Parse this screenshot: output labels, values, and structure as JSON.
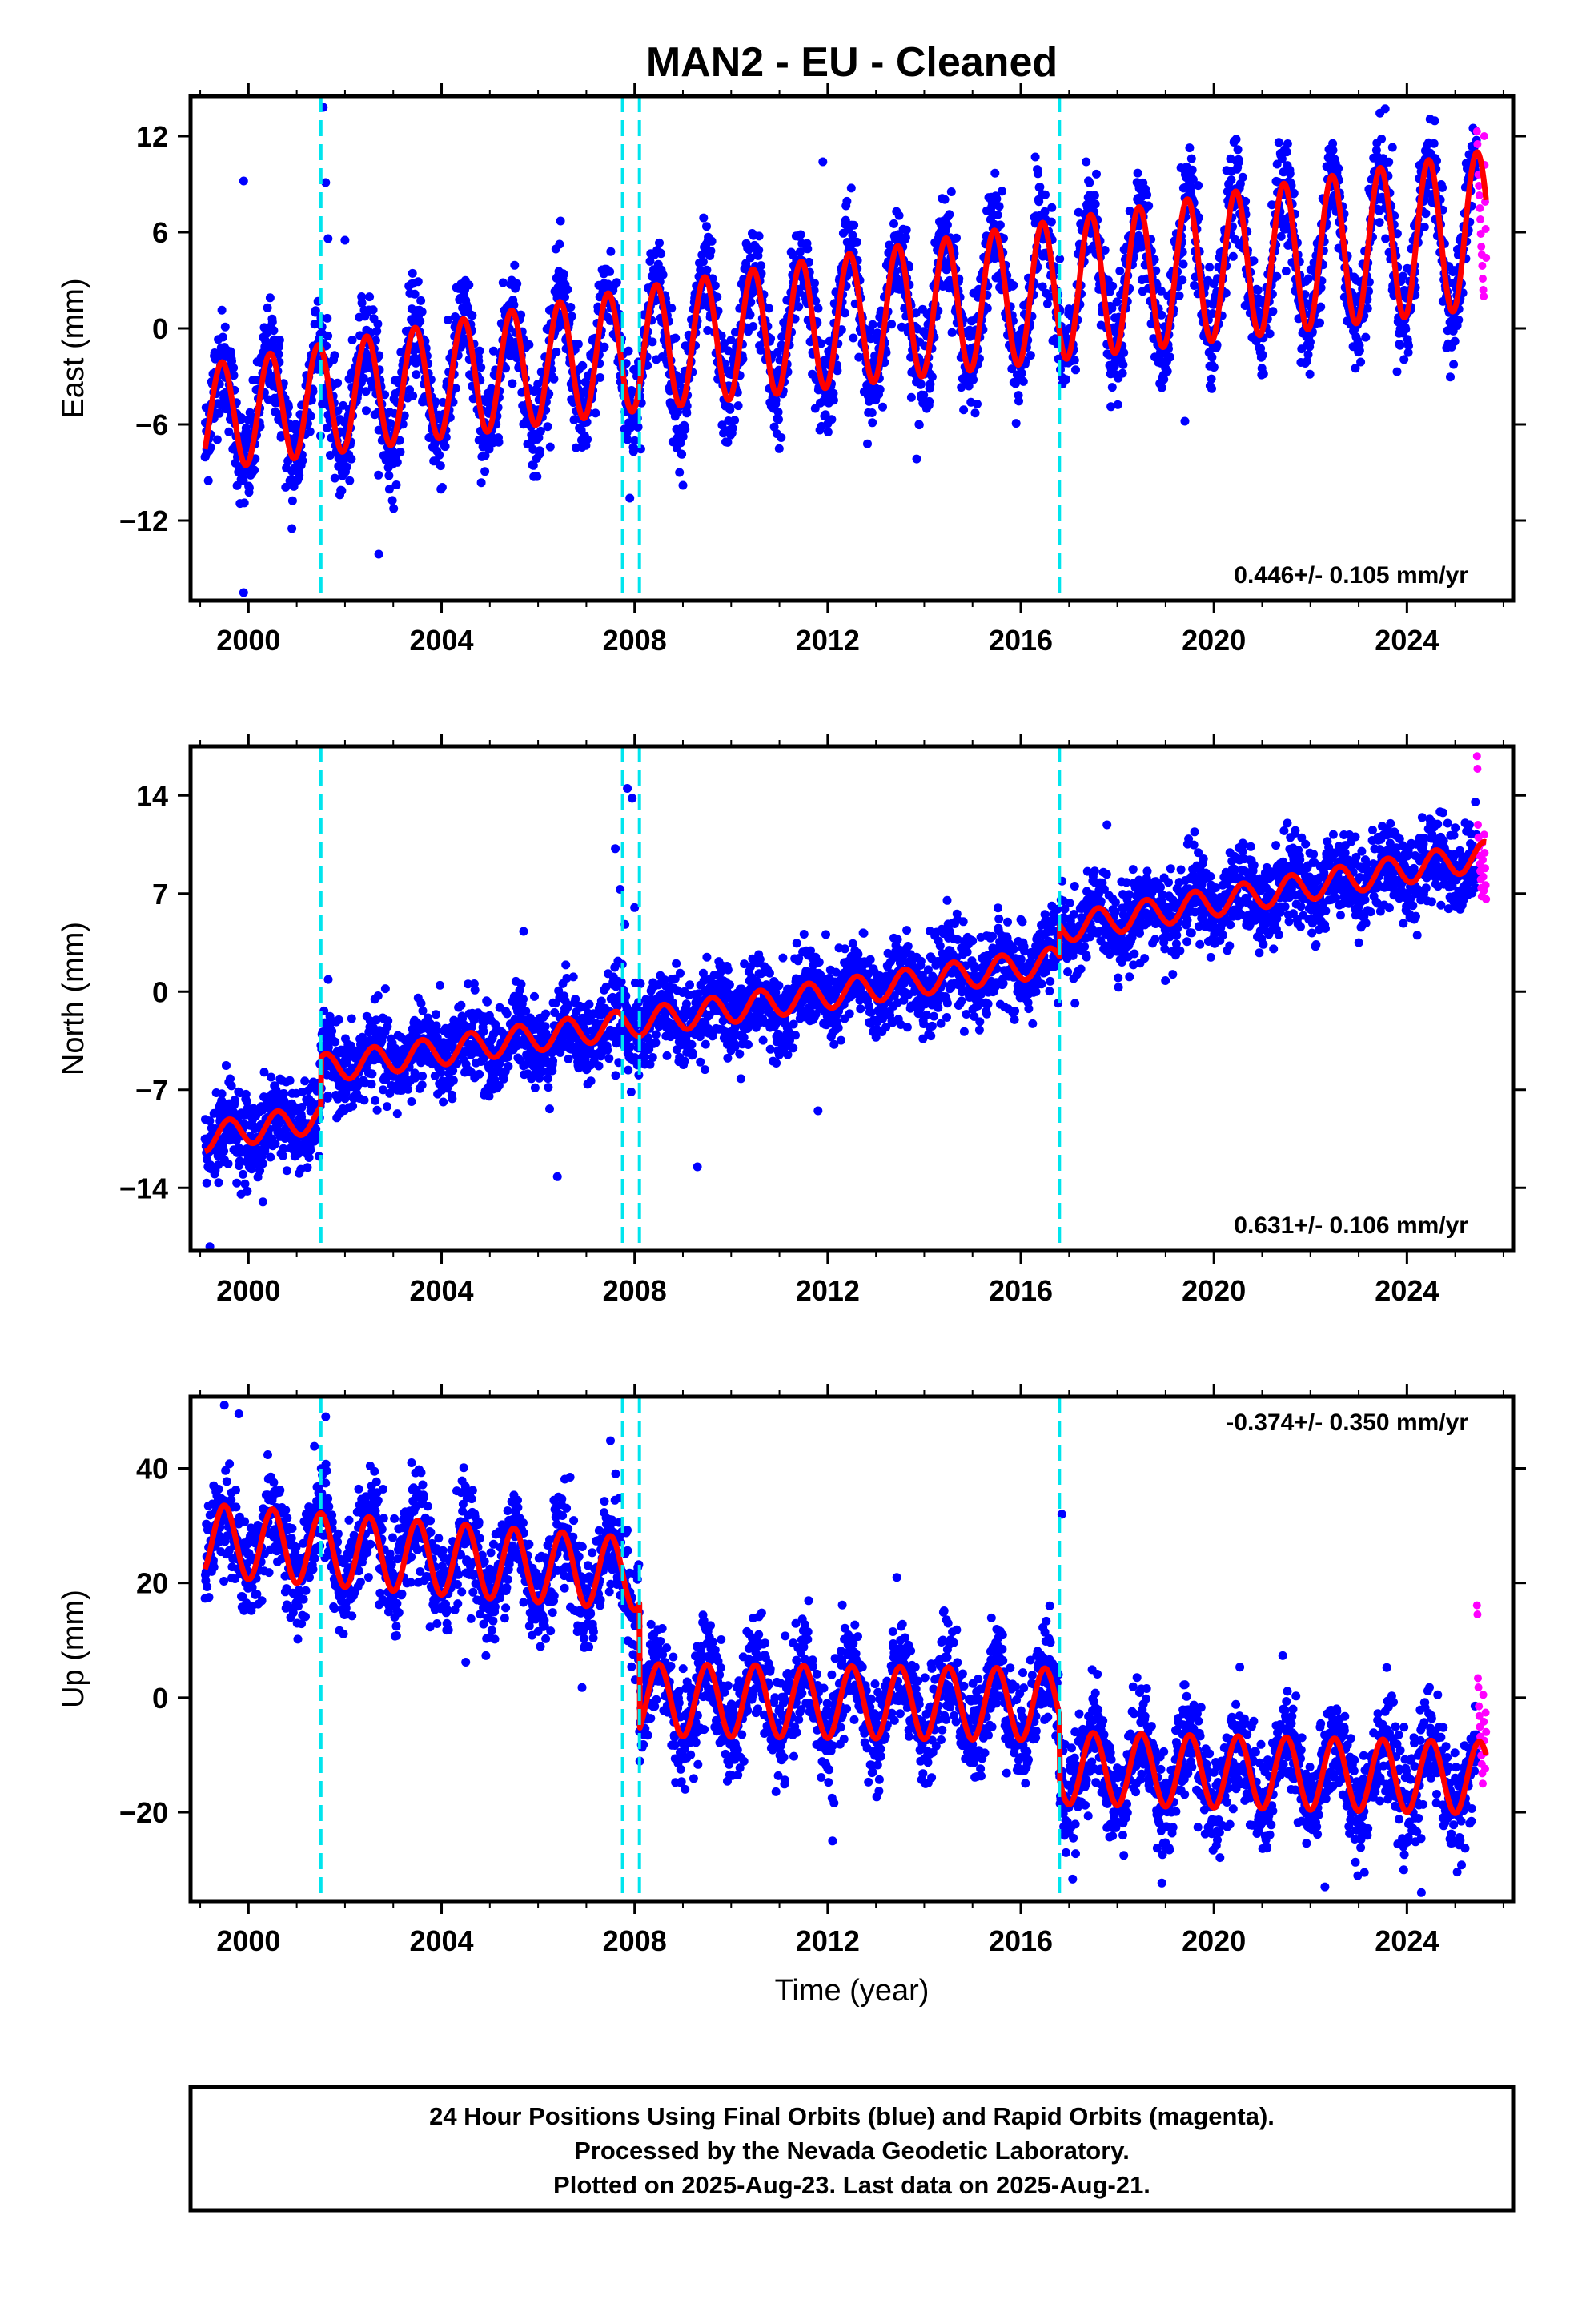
{
  "title": "MAN2  - EU - Cleaned",
  "xlabel": "Time (year)",
  "colors": {
    "final_orbits": "#0000ff",
    "rapid_orbits": "#ff00ff",
    "model_fit": "#ff0000",
    "steps": "#00e5ee",
    "frame": "#000000"
  },
  "caption": {
    "line1": "24 Hour Positions Using Final Orbits (blue) and Rapid Orbits (magenta).",
    "line2": "Processed by the Nevada Geodetic Laboratory.",
    "line3": "Plotted on 2025-Aug-23. Last data on 2025-Aug-21."
  },
  "chart_data": [
    {
      "type": "scatter",
      "ylabel": "East (mm)",
      "rate_text": "0.446+/- 0.105 mm/yr",
      "rate_position": "bottom-right",
      "xlim": [
        1998.8,
        2026.2
      ],
      "ylim": [
        -17,
        14.5
      ],
      "xticks": [
        2000,
        2004,
        2008,
        2012,
        2016,
        2020,
        2024
      ],
      "yticks": [
        -12,
        -6,
        0,
        6,
        12
      ],
      "ytick_labels": [
        "−12",
        "−6",
        "0",
        "6",
        "12"
      ],
      "series": [
        {
          "kind": "final",
          "data_start": 1999.1,
          "data_end": 2025.45,
          "scatter_sd_mm": 1.6
        },
        {
          "kind": "rapid",
          "data_start": 2025.45,
          "data_end": 2025.64,
          "values": [
            12.3,
            11.5,
            10.8,
            9.6,
            8.9,
            8.3,
            7.5,
            6.8,
            5.9,
            5.1,
            4.6,
            3.9,
            3.1,
            2.4,
            2.0,
            12.0,
            10.2,
            7.9,
            6.2,
            4.4
          ]
        },
        {
          "kind": "model",
          "points": [
            [
              1999.1,
              -5.6
            ],
            [
              2008.1,
              -1.3
            ],
            [
              2016.8,
              2.4
            ],
            [
              2025.64,
              6.2
            ]
          ],
          "annual_amp_mm": 3.3,
          "annual_peak_frac": 0.45,
          "amp_growth_mm_per_yr": 0.06
        }
      ],
      "steps": [
        2001.5,
        2007.75,
        2008.1,
        2016.8
      ],
      "outliers": [
        [
          1999.9,
          9.2
        ],
        [
          1999.9,
          -16.5
        ],
        [
          2001.55,
          13.8
        ],
        [
          2001.6,
          9.1
        ],
        [
          2001.65,
          5.6
        ],
        [
          2002.0,
          5.5
        ],
        [
          2011.9,
          10.4
        ],
        [
          2009.0,
          -9.8
        ],
        [
          2000.9,
          -12.5
        ],
        [
          2002.7,
          -14.1
        ],
        [
          2019.4,
          -5.8
        ],
        [
          2007.9,
          -10.6
        ],
        [
          2023.7,
          11.3
        ],
        [
          2016.3,
          10.7
        ]
      ]
    },
    {
      "type": "scatter",
      "ylabel": "North (mm)",
      "rate_text": "0.631+/- 0.106 mm/yr",
      "rate_position": "bottom-right",
      "xlim": [
        1998.8,
        2026.2
      ],
      "ylim": [
        -18.5,
        17.5
      ],
      "xticks": [
        2000,
        2004,
        2008,
        2012,
        2016,
        2020,
        2024
      ],
      "yticks": [
        -14,
        -7,
        0,
        7,
        14
      ],
      "ytick_labels": [
        "−14",
        "−7",
        "0",
        "7",
        "14"
      ],
      "series": [
        {
          "kind": "final",
          "data_start": 1999.1,
          "data_end": 2025.45,
          "scatter_sd_mm": 1.5
        },
        {
          "kind": "rapid",
          "data_start": 2025.45,
          "data_end": 2025.64,
          "values": [
            16.8,
            15.9,
            11.9,
            11.0,
            10.3,
            9.7,
            9.1,
            8.6,
            8.0,
            7.4,
            6.8,
            10.6,
            9.4,
            8.2,
            7.2,
            11.2,
            9.9,
            8.8,
            7.6,
            6.6
          ]
        },
        {
          "kind": "model",
          "points": [
            [
              1999.1,
              -10.4
            ],
            [
              2001.5,
              -9.0
            ],
            [
              2001.5,
              -5.5
            ],
            [
              2016.8,
              2.2
            ],
            [
              2016.8,
              4.5
            ],
            [
              2025.64,
              9.7
            ]
          ],
          "annual_amp_mm": 1.0,
          "annual_peak_frac": 0.6,
          "amp_growth_mm_per_yr": 0.0
        }
      ],
      "steps": [
        2001.5,
        2007.75,
        2008.1,
        2016.8
      ],
      "outliers": [
        [
          2007.85,
          14.5
        ],
        [
          2007.95,
          13.8
        ],
        [
          2007.6,
          10.2
        ],
        [
          2007.7,
          7.3
        ],
        [
          2008.0,
          6.0
        ],
        [
          2007.8,
          4.8
        ],
        [
          2006.4,
          -13.2
        ],
        [
          2009.3,
          -12.5
        ],
        [
          2011.8,
          -8.5
        ],
        [
          2000.3,
          -15.0
        ],
        [
          1999.2,
          -18.2
        ],
        [
          2005.7,
          4.3
        ],
        [
          2019.6,
          11.4
        ],
        [
          2002.6,
          -3.9
        ]
      ]
    },
    {
      "type": "scatter",
      "ylabel": "Up (mm)",
      "rate_text": "-0.374+/- 0.350 mm/yr",
      "rate_position": "top-right",
      "xlim": [
        1998.8,
        2026.2
      ],
      "ylim": [
        -35.5,
        52.5
      ],
      "xticks": [
        2000,
        2004,
        2008,
        2012,
        2016,
        2020,
        2024
      ],
      "yticks": [
        -20,
        0,
        20,
        40
      ],
      "ytick_labels": [
        "−20",
        "0",
        "20",
        "40"
      ],
      "series": [
        {
          "kind": "final",
          "data_start": 1999.1,
          "data_end": 2025.45,
          "scatter_sd_mm": 4.5
        },
        {
          "kind": "rapid",
          "data_start": 2025.45,
          "data_end": 2025.64,
          "values": [
            16.1,
            14.5,
            3.4,
            1.8,
            -1.5,
            -3.2,
            -5.1,
            -6.8,
            -8.4,
            -10.1,
            -11.6,
            -13.2,
            -15.0,
            0.5,
            -4.2,
            -7.5,
            -9.6,
            -12.4,
            -2.6,
            -6.0
          ]
        },
        {
          "kind": "model",
          "points": [
            [
              1999.1,
              27.5
            ],
            [
              2008.1,
              21.5
            ],
            [
              2008.1,
              -0.4
            ],
            [
              2016.8,
              -1.2
            ],
            [
              2016.8,
              -12.3
            ],
            [
              2025.64,
              -14.0
            ]
          ],
          "annual_amp_mm": 6.3,
          "annual_peak_frac": 0.5,
          "amp_growth_mm_per_yr": 0.0
        }
      ],
      "steps": [
        2001.5,
        2007.75,
        2008.1,
        2016.8
      ],
      "outliers": [
        [
          1999.5,
          51.0
        ],
        [
          2001.6,
          49.0
        ],
        [
          2016.85,
          32.0
        ],
        [
          2012.1,
          -25.0
        ],
        [
          2022.3,
          -33.0
        ],
        [
          2024.3,
          -34.0
        ],
        [
          1999.8,
          49.5
        ],
        [
          2007.5,
          44.8
        ],
        [
          2004.5,
          6.2
        ],
        [
          2016.6,
          16.0
        ]
      ]
    }
  ]
}
